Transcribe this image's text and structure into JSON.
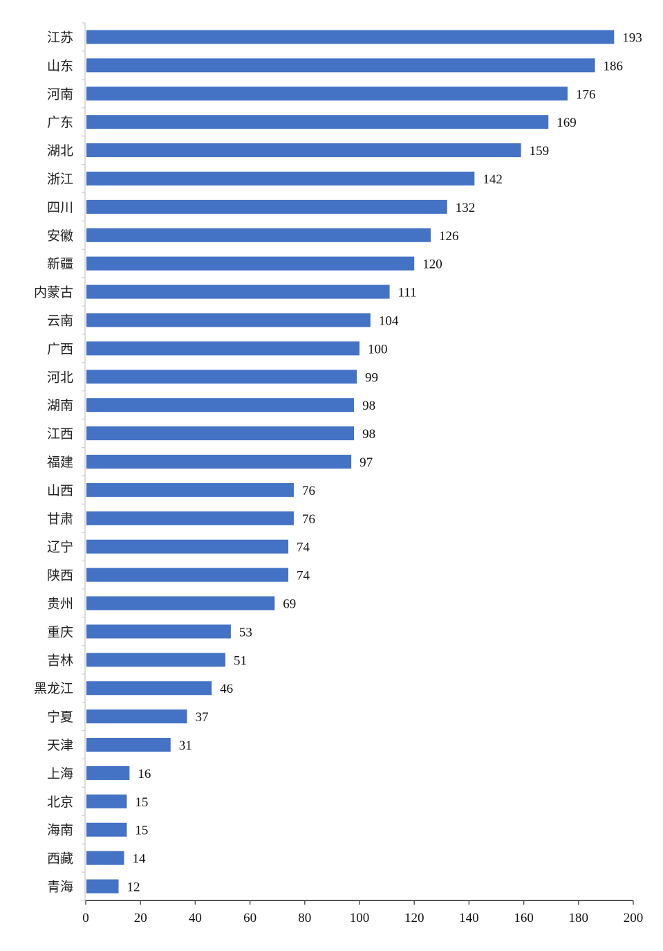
{
  "chart_data": {
    "type": "bar",
    "orientation": "horizontal",
    "title": "",
    "xlabel": "",
    "ylabel": "",
    "xlim": [
      0,
      200
    ],
    "xticks": [
      0,
      20,
      40,
      60,
      80,
      100,
      120,
      140,
      160,
      180,
      200
    ],
    "grid": false,
    "bar_color": "#4472C4",
    "categories": [
      "江苏",
      "山东",
      "河南",
      "广东",
      "湖北",
      "浙江",
      "四川",
      "安徽",
      "新疆",
      "内蒙古",
      "云南",
      "广西",
      "河北",
      "湖南",
      "江西",
      "福建",
      "山西",
      "甘肃",
      "辽宁",
      "陕西",
      "贵州",
      "重庆",
      "吉林",
      "黑龙江",
      "宁夏",
      "天津",
      "上海",
      "北京",
      "海南",
      "西藏",
      "青海"
    ],
    "values": [
      193,
      186,
      176,
      169,
      159,
      142,
      132,
      126,
      120,
      111,
      104,
      100,
      99,
      98,
      98,
      97,
      76,
      76,
      74,
      74,
      69,
      53,
      51,
      46,
      37,
      31,
      16,
      15,
      15,
      14,
      12
    ]
  }
}
